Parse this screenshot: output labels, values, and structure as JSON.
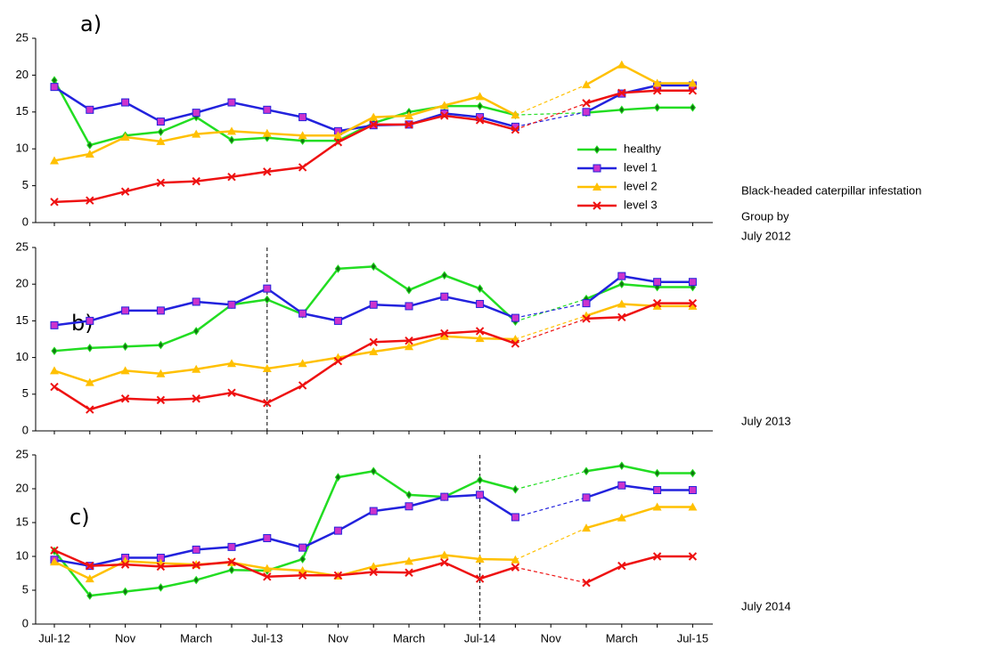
{
  "annotations": [
    "Black-headed caterpillar infestation",
    "Group by"
  ],
  "chart_data": [
    {
      "type": "line",
      "label": "a)",
      "annotation": "July 2012",
      "ylim": [
        0,
        25
      ],
      "yticks": [
        0,
        5,
        10,
        15,
        20,
        25
      ],
      "legend": "right",
      "series": [
        {
          "name": "healthy",
          "color": "#22dd22",
          "marker": "diamond",
          "marker_color": "#117711",
          "values": [
            19.3,
            10.5,
            11.8,
            12.3,
            14.3,
            11.2,
            11.5,
            11.1,
            11.1,
            13.5,
            15.0,
            15.8,
            15.8,
            14.6,
            null,
            14.9,
            15.3,
            15.6,
            15.6
          ]
        },
        {
          "name": "level 1",
          "color": "#2222dd",
          "marker": "square",
          "marker_color": "#cc33cc",
          "values": [
            18.4,
            15.3,
            16.3,
            13.7,
            14.9,
            16.3,
            15.3,
            14.3,
            12.4,
            13.2,
            13.3,
            14.8,
            14.3,
            13.0,
            null,
            15.0,
            17.5,
            18.6,
            18.6
          ]
        },
        {
          "name": "level 2",
          "color": "#ffc000",
          "marker": "triangle",
          "marker_color": "#ffc000",
          "values": [
            8.4,
            9.3,
            11.6,
            11.0,
            12.0,
            12.4,
            12.1,
            11.8,
            11.8,
            14.3,
            14.5,
            15.9,
            17.1,
            14.6,
            null,
            18.7,
            21.4,
            18.9,
            18.9
          ]
        },
        {
          "name": "level 3",
          "color": "#ee1111",
          "marker": "x",
          "marker_color": "#ee1111",
          "values": [
            2.8,
            3.0,
            4.2,
            5.4,
            5.6,
            6.2,
            6.9,
            7.5,
            10.9,
            13.3,
            13.3,
            14.5,
            13.9,
            12.6,
            null,
            16.2,
            17.6,
            17.9,
            17.9
          ]
        }
      ]
    },
    {
      "type": "line",
      "label": "b)",
      "annotation": "July 2013",
      "ylim": [
        0,
        25
      ],
      "yticks": [
        0,
        5,
        10,
        15,
        20,
        25
      ],
      "vline_index": 6,
      "series": [
        {
          "color": "#22dd22",
          "marker": "diamond",
          "marker_color": "#117711",
          "values": [
            10.9,
            11.3,
            11.5,
            11.7,
            13.6,
            17.2,
            17.9,
            15.9,
            22.1,
            22.4,
            19.2,
            21.2,
            19.4,
            14.9,
            null,
            18.0,
            20.0,
            19.6,
            19.6
          ]
        },
        {
          "color": "#2222dd",
          "marker": "square",
          "marker_color": "#cc33cc",
          "values": [
            14.4,
            15.0,
            16.4,
            16.4,
            17.6,
            17.2,
            19.4,
            16.0,
            15.0,
            17.2,
            17.0,
            18.3,
            17.3,
            15.4,
            null,
            17.4,
            21.1,
            20.3,
            20.3
          ]
        },
        {
          "color": "#ffc000",
          "marker": "triangle",
          "marker_color": "#ffc000",
          "values": [
            8.2,
            6.6,
            8.2,
            7.8,
            8.4,
            9.2,
            8.5,
            9.2,
            10.0,
            10.8,
            11.5,
            12.9,
            12.6,
            12.5,
            null,
            15.7,
            17.3,
            17.0,
            17.0
          ]
        },
        {
          "color": "#ee1111",
          "marker": "x",
          "marker_color": "#ee1111",
          "values": [
            6.0,
            2.9,
            4.4,
            4.2,
            4.4,
            5.2,
            3.8,
            6.2,
            9.5,
            12.1,
            12.3,
            13.3,
            13.6,
            11.9,
            null,
            15.3,
            15.5,
            17.4,
            17.4
          ]
        }
      ]
    },
    {
      "type": "line",
      "label": "c)",
      "annotation": "July 2014",
      "ylim": [
        0,
        25
      ],
      "yticks": [
        0,
        5,
        10,
        15,
        20,
        25
      ],
      "vline_index": 12,
      "categories": [
        "Jul-12",
        null,
        "Nov",
        null,
        "March",
        null,
        "Jul-13",
        null,
        "Nov",
        null,
        "March",
        null,
        "Jul-14",
        null,
        "Nov",
        null,
        "March",
        null,
        "Jul-15"
      ],
      "series": [
        {
          "color": "#22dd22",
          "marker": "diamond",
          "marker_color": "#117711",
          "values": [
            10.8,
            4.2,
            4.8,
            5.4,
            6.5,
            8.0,
            7.9,
            9.6,
            21.7,
            22.6,
            19.1,
            18.8,
            21.3,
            19.9,
            null,
            22.6,
            23.4,
            22.3,
            22.3
          ]
        },
        {
          "color": "#2222dd",
          "marker": "square",
          "marker_color": "#cc33cc",
          "values": [
            9.5,
            8.6,
            9.8,
            9.8,
            11.0,
            11.4,
            12.7,
            11.3,
            13.8,
            16.7,
            17.4,
            18.8,
            19.1,
            15.8,
            null,
            18.7,
            20.5,
            19.8,
            19.8
          ]
        },
        {
          "color": "#ffc000",
          "marker": "triangle",
          "marker_color": "#ffc000",
          "values": [
            9.2,
            6.7,
            9.3,
            9.0,
            8.8,
            9.1,
            8.2,
            7.9,
            7.1,
            8.5,
            9.3,
            10.2,
            9.6,
            9.5,
            null,
            14.2,
            15.7,
            17.3,
            17.3
          ]
        },
        {
          "color": "#ee1111",
          "marker": "x",
          "marker_color": "#ee1111",
          "values": [
            10.9,
            8.6,
            8.8,
            8.5,
            8.7,
            9.2,
            7.0,
            7.2,
            7.2,
            7.7,
            7.6,
            9.1,
            6.7,
            8.4,
            null,
            6.1,
            8.6,
            10.0,
            10.0
          ]
        }
      ]
    }
  ]
}
